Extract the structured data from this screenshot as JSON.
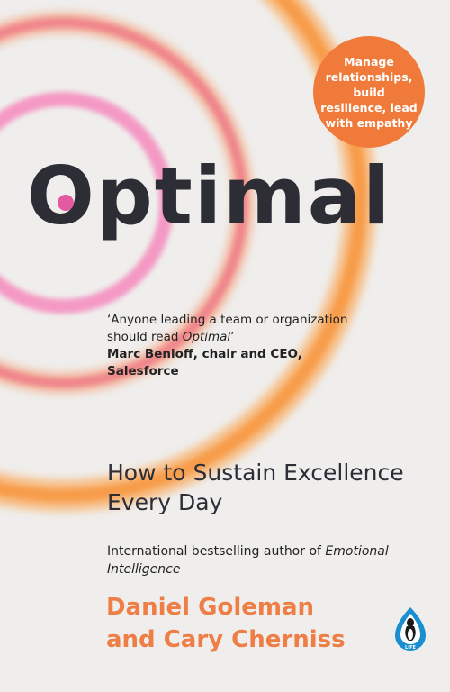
{
  "cover": {
    "badge_text": "Manage relationships, build resilience, lead with empathy",
    "title": "Optimal",
    "quote": {
      "text_before": "‘Anyone leading a team or organization should read ",
      "text_italic": "Optimal",
      "text_after": "’",
      "attribution": "Marc Benioff, chair and CEO, Salesforce"
    },
    "subtitle": "How to Sustain Excellence Every Day",
    "credit": {
      "line": "International bestselling author of",
      "book": "Emotional Intelligence"
    },
    "authors": {
      "line1": "Daniel Goleman",
      "line2": "and Cary Cherniss"
    },
    "logo": {
      "icon": "penguin-icon",
      "text": "LIFE"
    },
    "colors": {
      "background": "#efeeec",
      "title": "#2d2d36",
      "accent_orange": "#f07a3a",
      "accent_pink": "#f07aa6",
      "author_orange": "#ee7e45",
      "logo_blue": "#1a8fd0"
    }
  }
}
